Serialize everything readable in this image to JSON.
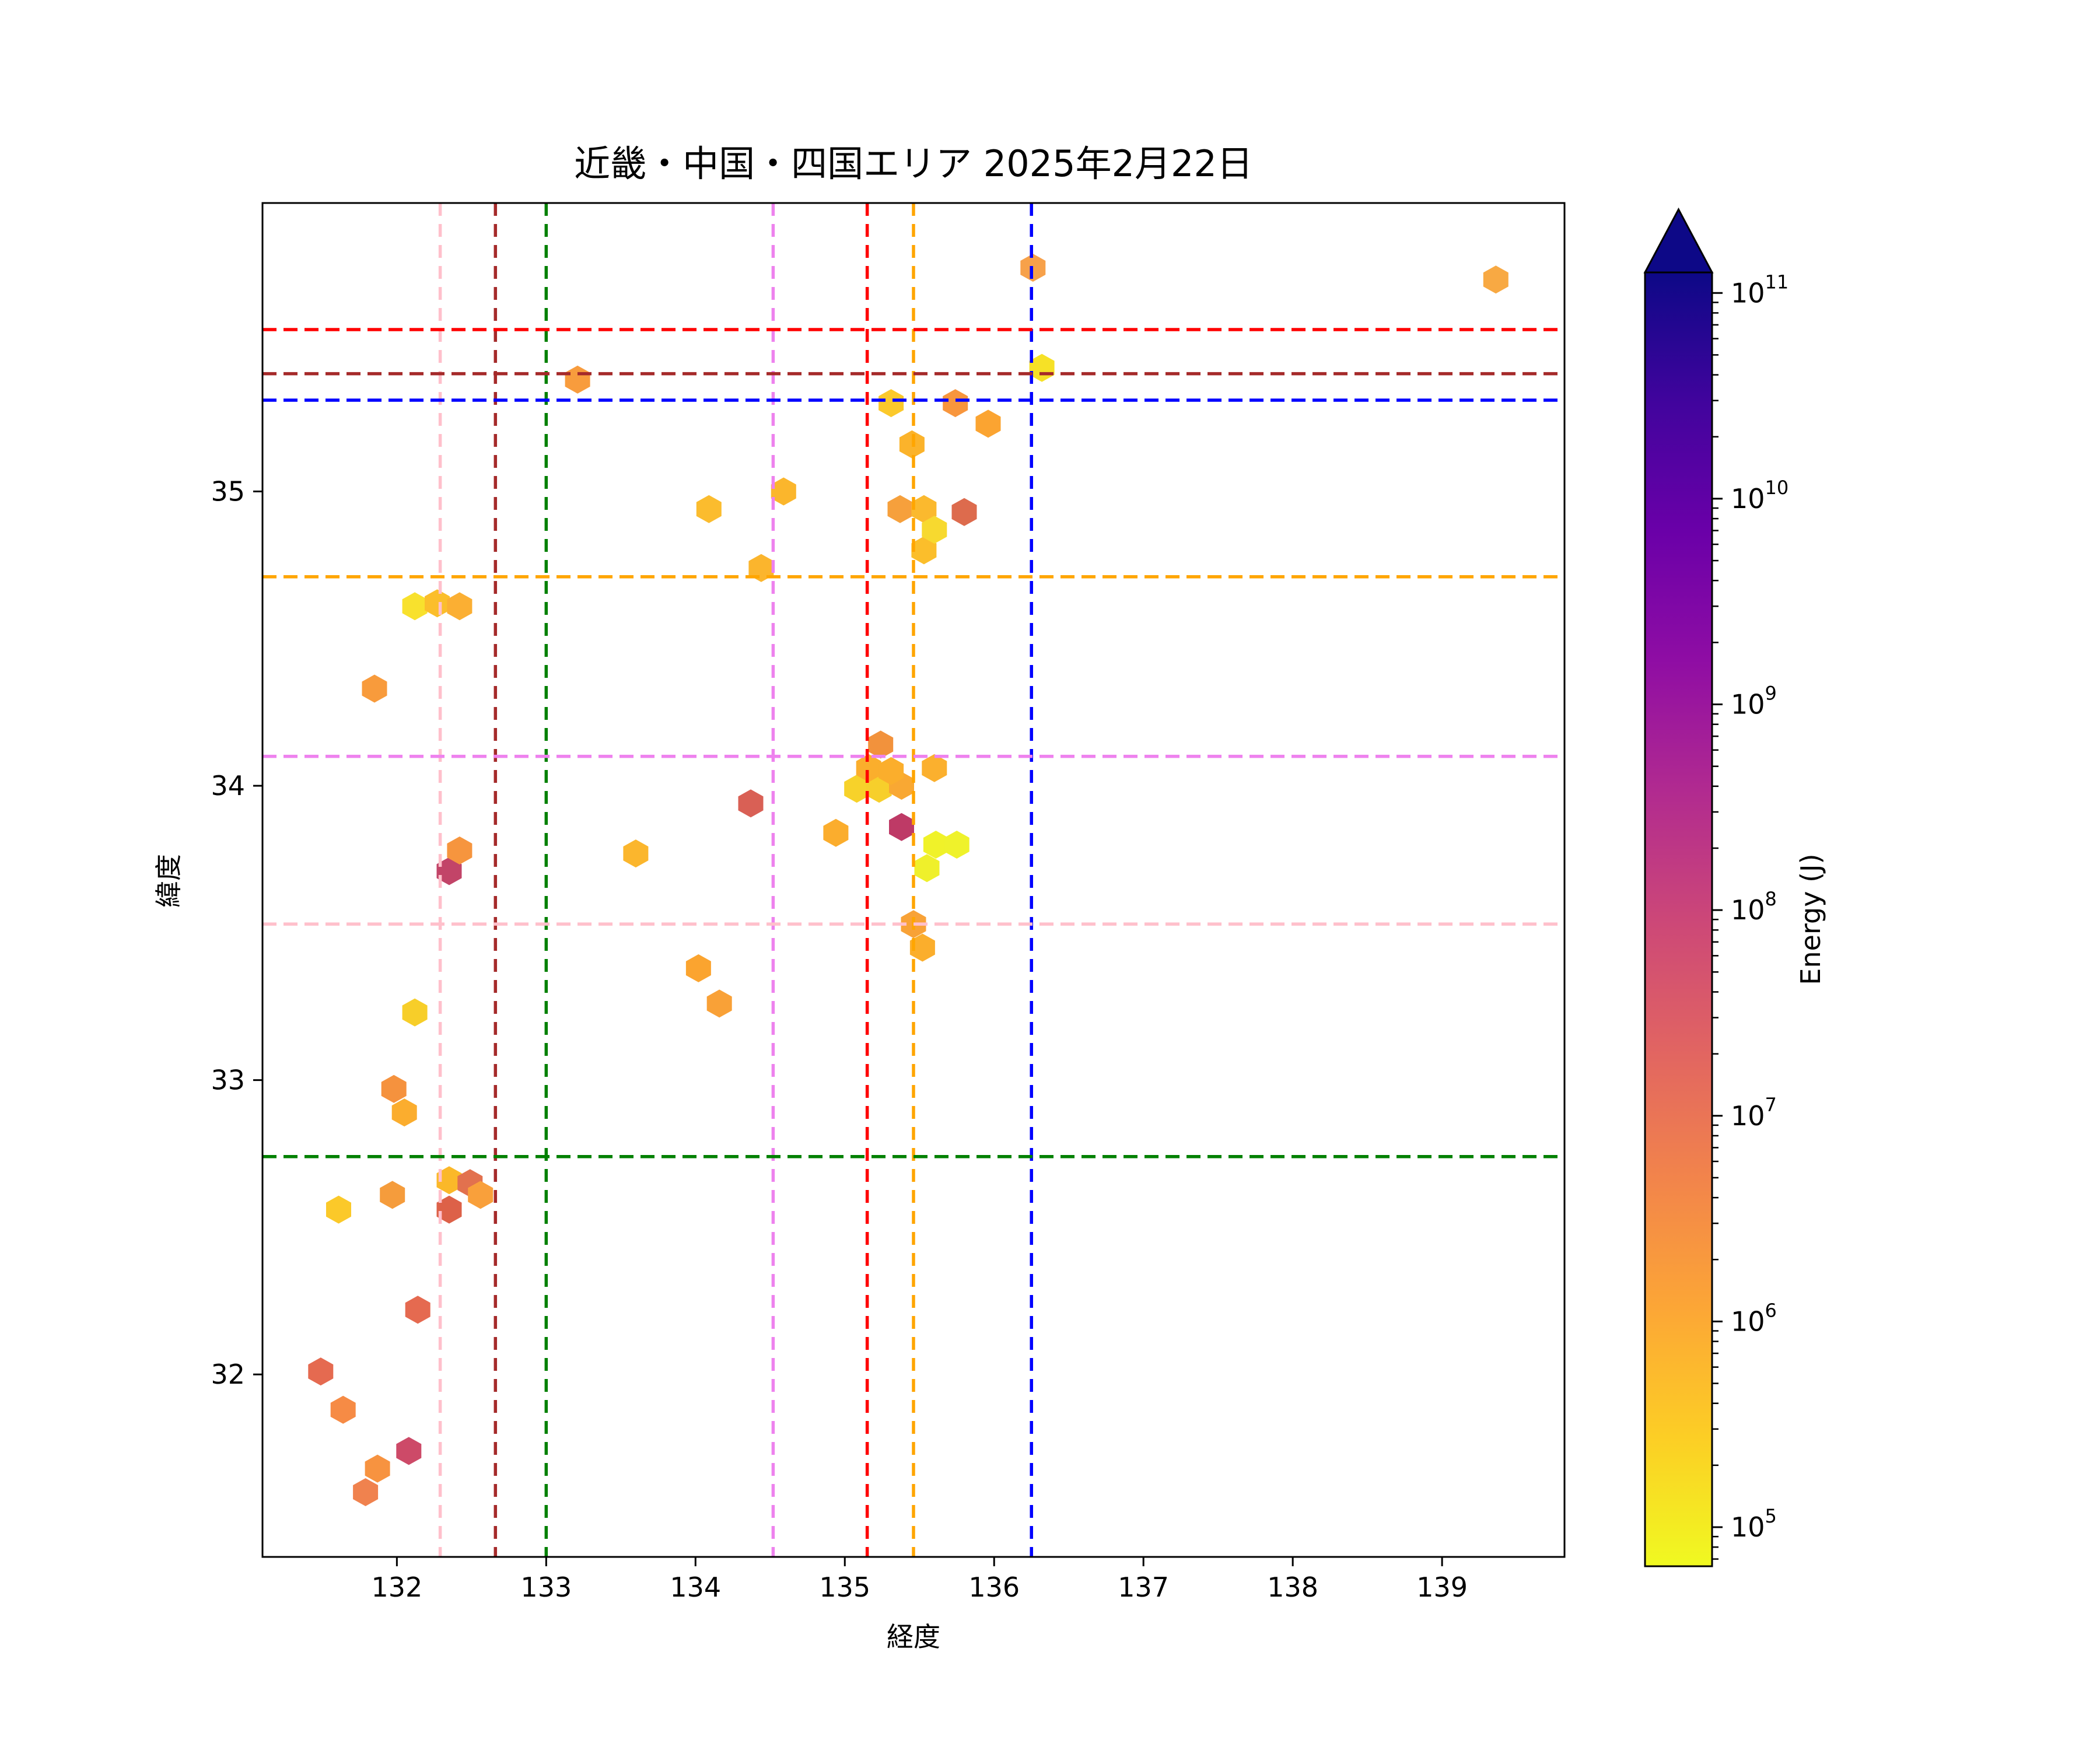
{
  "title": "近畿・中国・四国エリア 2025年2月22日",
  "chart_data": {
    "type": "scatter",
    "title": "近畿・中国・四国エリア 2025年2月22日",
    "xlabel": "経度",
    "ylabel": "緯度",
    "xlim": [
      131.1,
      139.82
    ],
    "ylim": [
      31.38,
      35.98
    ],
    "xticks": [
      "132",
      "133",
      "134",
      "135",
      "136",
      "137",
      "138",
      "139"
    ],
    "xtick_values": [
      132,
      133,
      134,
      135,
      136,
      137,
      138,
      139
    ],
    "yticks": [
      "35",
      "34",
      "33",
      "32"
    ],
    "ytick_values": [
      35,
      34,
      33,
      32
    ],
    "grid": false,
    "marker": "hexagon",
    "marker_size_px": {
      "width": 43,
      "height": 48
    },
    "colorbar": {
      "label": "Energy (J)",
      "scale": "log10",
      "colormap": "plasma_r",
      "extend": "max",
      "tick_exponents": [
        11,
        10,
        9,
        8,
        7,
        6,
        5
      ],
      "range_exponents": [
        4.81,
        11.1
      ],
      "stops_bottom_to_top": [
        "#f0f921",
        "#fcce25",
        "#fca636",
        "#f2844b",
        "#e16462",
        "#cc4778",
        "#b12a90",
        "#8f0da4",
        "#6a00a8",
        "#41049d",
        "#0d0887"
      ]
    },
    "reference_lines": {
      "vertical": [
        {
          "x": 132.29,
          "color": "#ffc0cb",
          "color_name": "pink"
        },
        {
          "x": 132.66,
          "color": "#a52a2a",
          "color_name": "darkred"
        },
        {
          "x": 133.0,
          "color": "#008000",
          "color_name": "green"
        },
        {
          "x": 134.52,
          "color": "#ee82ee",
          "color_name": "violet"
        },
        {
          "x": 135.15,
          "color": "#ff0000",
          "color_name": "red"
        },
        {
          "x": 135.46,
          "color": "#ffa500",
          "color_name": "orange"
        },
        {
          "x": 136.25,
          "color": "#0000ff",
          "color_name": "blue"
        }
      ],
      "horizontal": [
        {
          "y": 35.55,
          "color": "#ff0000",
          "color_name": "red"
        },
        {
          "y": 35.4,
          "color": "#a52a2a",
          "color_name": "darkred"
        },
        {
          "y": 35.31,
          "color": "#0000ff",
          "color_name": "blue"
        },
        {
          "y": 34.71,
          "color": "#ffa500",
          "color_name": "orange"
        },
        {
          "y": 34.1,
          "color": "#ee82ee",
          "color_name": "violet"
        },
        {
          "y": 33.53,
          "color": "#ffc0cb",
          "color_name": "pink"
        },
        {
          "y": 32.74,
          "color": "#008000",
          "color_name": "green"
        }
      ]
    },
    "points": [
      {
        "lon": 136.26,
        "lat": 35.76,
        "color": "#f7a14a",
        "log10_energy": 6.2
      },
      {
        "lon": 139.36,
        "lat": 35.72,
        "color": "#f8a943",
        "log10_energy": 6.1
      },
      {
        "lon": 136.32,
        "lat": 35.42,
        "color": "#f6e126",
        "log10_energy": 5.1
      },
      {
        "lon": 133.21,
        "lat": 35.38,
        "color": "#f89c3d",
        "log10_energy": 6.3
      },
      {
        "lon": 135.31,
        "lat": 35.3,
        "color": "#fbc92b",
        "log10_energy": 5.5
      },
      {
        "lon": 135.74,
        "lat": 35.3,
        "color": "#f8963d",
        "log10_energy": 6.5
      },
      {
        "lon": 135.96,
        "lat": 35.23,
        "color": "#fba431",
        "log10_energy": 6.1
      },
      {
        "lon": 135.45,
        "lat": 35.16,
        "color": "#fbb32b",
        "log10_energy": 5.8
      },
      {
        "lon": 134.59,
        "lat": 35.0,
        "color": "#fbb62c",
        "log10_energy": 5.8
      },
      {
        "lon": 134.09,
        "lat": 34.94,
        "color": "#fbbc2e",
        "log10_energy": 5.7
      },
      {
        "lon": 135.37,
        "lat": 34.94,
        "color": "#f6a03c",
        "log10_energy": 6.2
      },
      {
        "lon": 135.53,
        "lat": 34.94,
        "color": "#fbb92e",
        "log10_energy": 5.8
      },
      {
        "lon": 135.8,
        "lat": 34.93,
        "color": "#dd6b4d",
        "log10_energy": 7.1
      },
      {
        "lon": 135.53,
        "lat": 34.8,
        "color": "#fbbe2b",
        "log10_energy": 5.7
      },
      {
        "lon": 135.6,
        "lat": 34.87,
        "color": "#f7d92f",
        "log10_energy": 5.3
      },
      {
        "lon": 134.44,
        "lat": 34.74,
        "color": "#fbb52d",
        "log10_energy": 5.8
      },
      {
        "lon": 132.12,
        "lat": 34.61,
        "color": "#f8e12d",
        "log10_energy": 5.1
      },
      {
        "lon": 132.27,
        "lat": 34.62,
        "color": "#fbbe2b",
        "log10_energy": 5.7
      },
      {
        "lon": 132.42,
        "lat": 34.61,
        "color": "#fbaf33",
        "log10_energy": 5.9
      },
      {
        "lon": 131.85,
        "lat": 34.33,
        "color": "#f89b3c",
        "log10_energy": 6.3
      },
      {
        "lon": 135.6,
        "lat": 34.06,
        "color": "#fbb02e",
        "log10_energy": 5.9
      },
      {
        "lon": 135.08,
        "lat": 33.99,
        "color": "#f7d22a",
        "log10_energy": 5.4
      },
      {
        "lon": 135.23,
        "lat": 33.99,
        "color": "#f7cf2b",
        "log10_energy": 5.4
      },
      {
        "lon": 135.38,
        "lat": 34.0,
        "color": "#f9a833",
        "log10_energy": 6.0
      },
      {
        "lon": 135.16,
        "lat": 34.06,
        "color": "#fbae2c",
        "log10_energy": 5.9
      },
      {
        "lon": 135.31,
        "lat": 34.05,
        "color": "#fbae2c",
        "log10_energy": 5.9
      },
      {
        "lon": 135.24,
        "lat": 34.14,
        "color": "#f2923c",
        "log10_energy": 6.4
      },
      {
        "lon": 134.94,
        "lat": 33.84,
        "color": "#fbad2d",
        "log10_energy": 5.9
      },
      {
        "lon": 135.38,
        "lat": 33.86,
        "color": "#be3a66",
        "log10_energy": 7.9
      },
      {
        "lon": 135.61,
        "lat": 33.8,
        "color": "#f0f229",
        "log10_energy": 4.9
      },
      {
        "lon": 135.75,
        "lat": 33.8,
        "color": "#eff22b",
        "log10_energy": 4.9
      },
      {
        "lon": 135.55,
        "lat": 33.72,
        "color": "#eff02b",
        "log10_energy": 4.9
      },
      {
        "lon": 135.46,
        "lat": 33.53,
        "color": "#f8a237",
        "log10_energy": 6.1
      },
      {
        "lon": 135.52,
        "lat": 33.45,
        "color": "#fbae2c",
        "log10_energy": 5.9
      },
      {
        "lon": 134.37,
        "lat": 33.94,
        "color": "#d96055",
        "log10_energy": 7.2
      },
      {
        "lon": 132.35,
        "lat": 33.71,
        "color": "#c24468",
        "log10_energy": 7.8
      },
      {
        "lon": 132.42,
        "lat": 33.78,
        "color": "#f6953e",
        "log10_energy": 6.5
      },
      {
        "lon": 133.6,
        "lat": 33.77,
        "color": "#fbb62d",
        "log10_energy": 5.8
      },
      {
        "lon": 132.12,
        "lat": 33.23,
        "color": "#f7ce29",
        "log10_energy": 5.4
      },
      {
        "lon": 134.02,
        "lat": 33.38,
        "color": "#fba42f",
        "log10_energy": 6.1
      },
      {
        "lon": 134.16,
        "lat": 33.26,
        "color": "#f9a137",
        "log10_energy": 6.2
      },
      {
        "lon": 131.98,
        "lat": 32.97,
        "color": "#f5923e",
        "log10_energy": 6.4
      },
      {
        "lon": 132.05,
        "lat": 32.89,
        "color": "#fbad2e",
        "log10_energy": 5.9
      },
      {
        "lon": 131.61,
        "lat": 32.56,
        "color": "#fbc929",
        "log10_energy": 5.5
      },
      {
        "lon": 131.97,
        "lat": 32.61,
        "color": "#f59c3c",
        "log10_energy": 6.3
      },
      {
        "lon": 132.35,
        "lat": 32.66,
        "color": "#fbb829",
        "log10_energy": 5.8
      },
      {
        "lon": 132.49,
        "lat": 32.65,
        "color": "#e2714e",
        "log10_energy": 7.0
      },
      {
        "lon": 132.56,
        "lat": 32.61,
        "color": "#f9a03b",
        "log10_energy": 6.2
      },
      {
        "lon": 132.35,
        "lat": 32.56,
        "color": "#dd6148",
        "log10_energy": 7.1
      },
      {
        "lon": 132.14,
        "lat": 32.22,
        "color": "#e56a50",
        "log10_energy": 7.0
      },
      {
        "lon": 131.49,
        "lat": 32.01,
        "color": "#e56a50",
        "log10_energy": 7.0
      },
      {
        "lon": 131.64,
        "lat": 31.88,
        "color": "#f68b45",
        "log10_energy": 6.6
      },
      {
        "lon": 132.08,
        "lat": 31.74,
        "color": "#cd4a68",
        "log10_energy": 7.8
      },
      {
        "lon": 131.79,
        "lat": 31.6,
        "color": "#f0824e",
        "log10_energy": 6.7
      },
      {
        "lon": 131.87,
        "lat": 31.68,
        "color": "#f79340",
        "log10_energy": 6.4
      }
    ]
  }
}
